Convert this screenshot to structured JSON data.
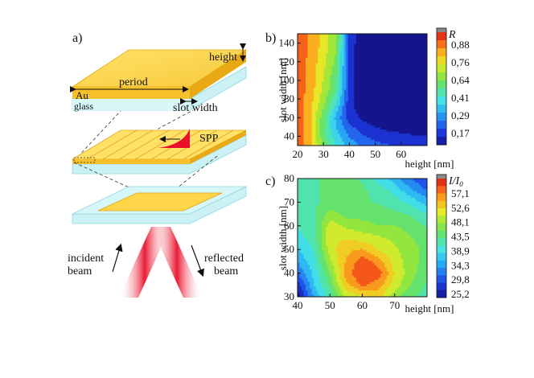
{
  "panel_a": {
    "label": "a)",
    "top_labels": {
      "height": "height",
      "period": "period",
      "au": "Au",
      "glass": "glass",
      "slot_width": "slot width"
    },
    "spp_label": "SPP",
    "incident_beam": [
      "incident",
      "beam"
    ],
    "reflected_beam": [
      "reflected",
      "beam"
    ]
  },
  "chart_data": [
    {
      "type": "heatmap",
      "panel_label": "b)",
      "xlabel": "height [nm]",
      "ylabel": "slot width [nm]",
      "xlim": [
        20,
        70
      ],
      "ylim": [
        30,
        150
      ],
      "x_ticks": [
        "20",
        "30",
        "40",
        "50",
        "60"
      ],
      "y_ticks": [
        "40",
        "60",
        "80",
        "100",
        "120",
        "140"
      ],
      "colorbar_title": "R",
      "colorbar_ticks": [
        "0,88",
        "0,76",
        "0,64",
        "0,41",
        "0,29",
        "0,17"
      ],
      "x": [
        20,
        25,
        30,
        35,
        40,
        45,
        50,
        55,
        60,
        65,
        70
      ],
      "y": [
        30,
        45,
        60,
        75,
        90,
        105,
        120,
        135,
        150
      ],
      "values": [
        [
          0.92,
          0.82,
          0.62,
          0.48,
          0.38,
          0.32,
          0.28,
          0.26,
          0.24,
          0.23,
          0.22
        ],
        [
          0.92,
          0.8,
          0.58,
          0.42,
          0.3,
          0.24,
          0.2,
          0.18,
          0.17,
          0.16,
          0.16
        ],
        [
          0.92,
          0.8,
          0.6,
          0.38,
          0.22,
          0.16,
          0.13,
          0.12,
          0.11,
          0.11,
          0.11
        ],
        [
          0.92,
          0.82,
          0.66,
          0.48,
          0.2,
          0.13,
          0.12,
          0.11,
          0.1,
          0.1,
          0.1
        ],
        [
          0.92,
          0.84,
          0.7,
          0.56,
          0.22,
          0.12,
          0.11,
          0.1,
          0.1,
          0.1,
          0.1
        ],
        [
          0.92,
          0.85,
          0.72,
          0.58,
          0.22,
          0.12,
          0.11,
          0.1,
          0.1,
          0.1,
          0.1
        ],
        [
          0.92,
          0.85,
          0.74,
          0.62,
          0.22,
          0.12,
          0.11,
          0.1,
          0.1,
          0.1,
          0.1
        ],
        [
          0.92,
          0.86,
          0.76,
          0.64,
          0.22,
          0.12,
          0.11,
          0.1,
          0.1,
          0.1,
          0.1
        ],
        [
          0.92,
          0.86,
          0.76,
          0.66,
          0.24,
          0.12,
          0.11,
          0.1,
          0.1,
          0.1,
          0.1
        ]
      ],
      "color_range": [
        0.1,
        0.95
      ]
    },
    {
      "type": "heatmap",
      "panel_label": "c)",
      "xlabel": "height [nm]",
      "ylabel": "slot width [nm]",
      "xlim": [
        40,
        80
      ],
      "ylim": [
        30,
        80
      ],
      "x_ticks": [
        "40",
        "50",
        "60",
        "70"
      ],
      "y_ticks": [
        "30",
        "40",
        "50",
        "60",
        "70",
        "80"
      ],
      "colorbar_title": "I/I",
      "colorbar_subscript": "0",
      "colorbar_ticks": [
        "57,1",
        "52,6",
        "48,1",
        "43,5",
        "38,9",
        "34,3",
        "29,8",
        "25,2"
      ],
      "x": [
        40,
        45,
        50,
        55,
        60,
        65,
        70,
        75,
        80
      ],
      "y": [
        30,
        35,
        40,
        45,
        50,
        55,
        60,
        65,
        70,
        75,
        80
      ],
      "values": [
        [
          26,
          36,
          42,
          49,
          51,
          52,
          47,
          44,
          42
        ],
        [
          29,
          38,
          44,
          53,
          57,
          55,
          50,
          46,
          43
        ],
        [
          33,
          39,
          46,
          55,
          59,
          58,
          51,
          47,
          44
        ],
        [
          36,
          40,
          48,
          54,
          58,
          55,
          50,
          47,
          45
        ],
        [
          38,
          41,
          50,
          53,
          54,
          51,
          49,
          47,
          45
        ],
        [
          40,
          42,
          51,
          51,
          50,
          49,
          48,
          46,
          45
        ],
        [
          41,
          42,
          50,
          48,
          47,
          46,
          46,
          45,
          43
        ],
        [
          42,
          43,
          47,
          45,
          45,
          45,
          44,
          43,
          41
        ],
        [
          42,
          43,
          44,
          44,
          44,
          43,
          42,
          40,
          37
        ],
        [
          42,
          43,
          44,
          44,
          44,
          42,
          40,
          36,
          33
        ],
        [
          42,
          43,
          44,
          44,
          43,
          40,
          37,
          33,
          30
        ]
      ],
      "color_range": [
        25.2,
        59.0
      ]
    }
  ]
}
